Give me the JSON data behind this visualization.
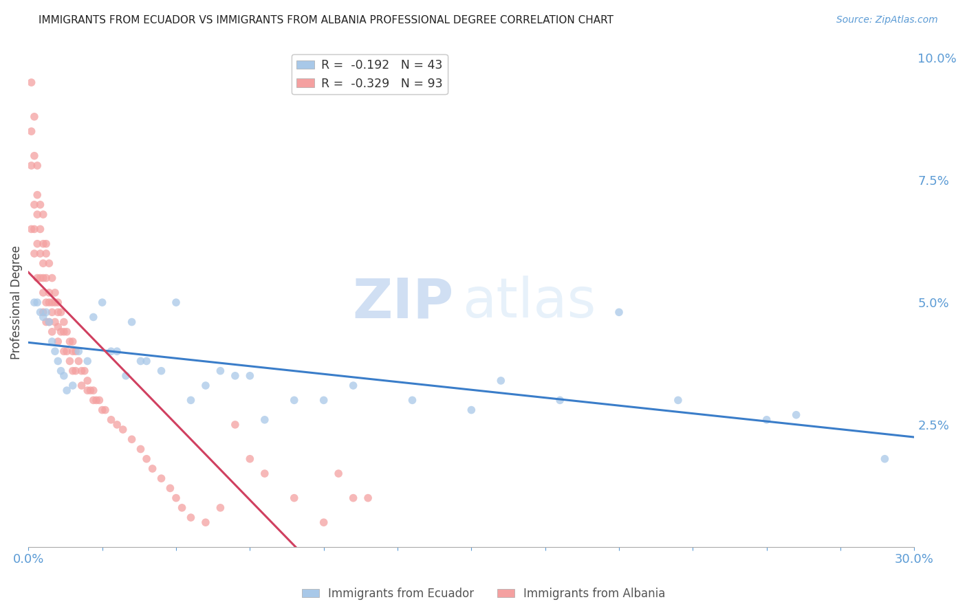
{
  "title": "IMMIGRANTS FROM ECUADOR VS IMMIGRANTS FROM ALBANIA PROFESSIONAL DEGREE CORRELATION CHART",
  "source": "Source: ZipAtlas.com",
  "ylabel": "Professional Degree",
  "xlim": [
    0,
    0.3
  ],
  "ylim": [
    0,
    0.1
  ],
  "xticks": [
    0.0,
    0.025,
    0.05,
    0.075,
    0.1,
    0.125,
    0.15,
    0.175,
    0.2,
    0.225,
    0.25,
    0.275,
    0.3
  ],
  "xtick_labels_show": [
    0.0,
    0.3
  ],
  "yticks_right": [
    0.025,
    0.05,
    0.075,
    0.1
  ],
  "ecuador_color": "#a8c8e8",
  "albania_color": "#f4a0a0",
  "ecuador_line_color": "#3a7dc9",
  "albania_line_color": "#d04060",
  "ecuador_R": -0.192,
  "ecuador_N": 43,
  "albania_R": -0.329,
  "albania_N": 93,
  "ecuador_data_x": [
    0.002,
    0.003,
    0.004,
    0.005,
    0.006,
    0.007,
    0.008,
    0.009,
    0.01,
    0.011,
    0.012,
    0.013,
    0.015,
    0.017,
    0.02,
    0.022,
    0.025,
    0.028,
    0.03,
    0.033,
    0.035,
    0.038,
    0.04,
    0.045,
    0.05,
    0.055,
    0.06,
    0.065,
    0.07,
    0.075,
    0.08,
    0.09,
    0.1,
    0.11,
    0.13,
    0.15,
    0.16,
    0.18,
    0.2,
    0.22,
    0.25,
    0.26,
    0.29
  ],
  "ecuador_data_y": [
    0.05,
    0.05,
    0.048,
    0.047,
    0.048,
    0.046,
    0.042,
    0.04,
    0.038,
    0.036,
    0.035,
    0.032,
    0.033,
    0.04,
    0.038,
    0.047,
    0.05,
    0.04,
    0.04,
    0.035,
    0.046,
    0.038,
    0.038,
    0.036,
    0.05,
    0.03,
    0.033,
    0.036,
    0.035,
    0.035,
    0.026,
    0.03,
    0.03,
    0.033,
    0.03,
    0.028,
    0.034,
    0.03,
    0.048,
    0.03,
    0.026,
    0.027,
    0.018
  ],
  "albania_data_x": [
    0.001,
    0.001,
    0.001,
    0.001,
    0.002,
    0.002,
    0.002,
    0.002,
    0.002,
    0.003,
    0.003,
    0.003,
    0.003,
    0.003,
    0.004,
    0.004,
    0.004,
    0.004,
    0.005,
    0.005,
    0.005,
    0.005,
    0.005,
    0.005,
    0.006,
    0.006,
    0.006,
    0.006,
    0.006,
    0.007,
    0.007,
    0.007,
    0.007,
    0.008,
    0.008,
    0.008,
    0.008,
    0.009,
    0.009,
    0.009,
    0.01,
    0.01,
    0.01,
    0.01,
    0.011,
    0.011,
    0.012,
    0.012,
    0.012,
    0.013,
    0.013,
    0.014,
    0.014,
    0.015,
    0.015,
    0.015,
    0.016,
    0.016,
    0.017,
    0.018,
    0.018,
    0.019,
    0.02,
    0.02,
    0.021,
    0.022,
    0.022,
    0.023,
    0.024,
    0.025,
    0.026,
    0.028,
    0.03,
    0.032,
    0.035,
    0.038,
    0.04,
    0.042,
    0.045,
    0.048,
    0.05,
    0.052,
    0.055,
    0.06,
    0.065,
    0.07,
    0.075,
    0.08,
    0.09,
    0.1,
    0.105,
    0.11,
    0.115
  ],
  "albania_data_y": [
    0.095,
    0.085,
    0.078,
    0.065,
    0.088,
    0.08,
    0.07,
    0.065,
    0.06,
    0.078,
    0.072,
    0.068,
    0.062,
    0.055,
    0.07,
    0.065,
    0.06,
    0.055,
    0.068,
    0.062,
    0.058,
    0.055,
    0.052,
    0.048,
    0.062,
    0.06,
    0.055,
    0.05,
    0.046,
    0.058,
    0.052,
    0.05,
    0.046,
    0.055,
    0.05,
    0.048,
    0.044,
    0.052,
    0.05,
    0.046,
    0.05,
    0.048,
    0.045,
    0.042,
    0.048,
    0.044,
    0.046,
    0.044,
    0.04,
    0.044,
    0.04,
    0.042,
    0.038,
    0.042,
    0.04,
    0.036,
    0.04,
    0.036,
    0.038,
    0.036,
    0.033,
    0.036,
    0.034,
    0.032,
    0.032,
    0.032,
    0.03,
    0.03,
    0.03,
    0.028,
    0.028,
    0.026,
    0.025,
    0.024,
    0.022,
    0.02,
    0.018,
    0.016,
    0.014,
    0.012,
    0.01,
    0.008,
    0.006,
    0.005,
    0.008,
    0.025,
    0.018,
    0.015,
    0.01,
    0.005,
    0.015,
    0.01,
    0.01
  ],
  "watermark_zip": "ZIP",
  "watermark_atlas": "atlas",
  "background_color": "#ffffff",
  "grid_color": "#dddddd",
  "title_fontsize": 11,
  "tick_label_color": "#5b9bd5"
}
